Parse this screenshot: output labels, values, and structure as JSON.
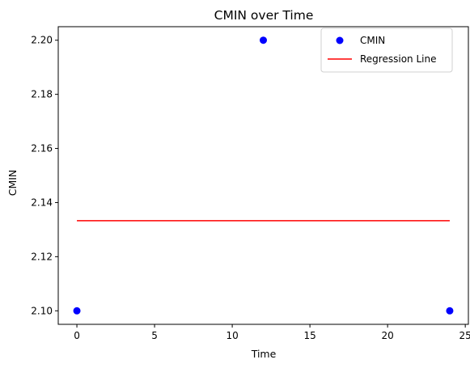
{
  "chart_data": {
    "type": "scatter",
    "title": "CMIN over Time",
    "xlabel": "Time",
    "ylabel": "CMIN",
    "xlim": [
      -1.2,
      25.2
    ],
    "ylim": [
      2.095,
      2.205
    ],
    "xticks": [
      0,
      5,
      10,
      15,
      20,
      25
    ],
    "xtick_labels": [
      "0",
      "5",
      "10",
      "15",
      "20",
      "25"
    ],
    "yticks": [
      2.1,
      2.12,
      2.14,
      2.16,
      2.18,
      2.2
    ],
    "ytick_labels": [
      "2.10",
      "2.12",
      "2.14",
      "2.16",
      "2.18",
      "2.20"
    ],
    "grid": false,
    "legend_position": "top-right",
    "series": [
      {
        "name": "CMIN",
        "kind": "scatter",
        "color": "#0000ff",
        "x": [
          0,
          12,
          24
        ],
        "y": [
          2.1,
          2.2,
          2.1
        ]
      },
      {
        "name": "Regression Line",
        "kind": "line",
        "color": "#ff0000",
        "x": [
          0,
          24
        ],
        "y": [
          2.1333,
          2.1333
        ]
      }
    ]
  }
}
